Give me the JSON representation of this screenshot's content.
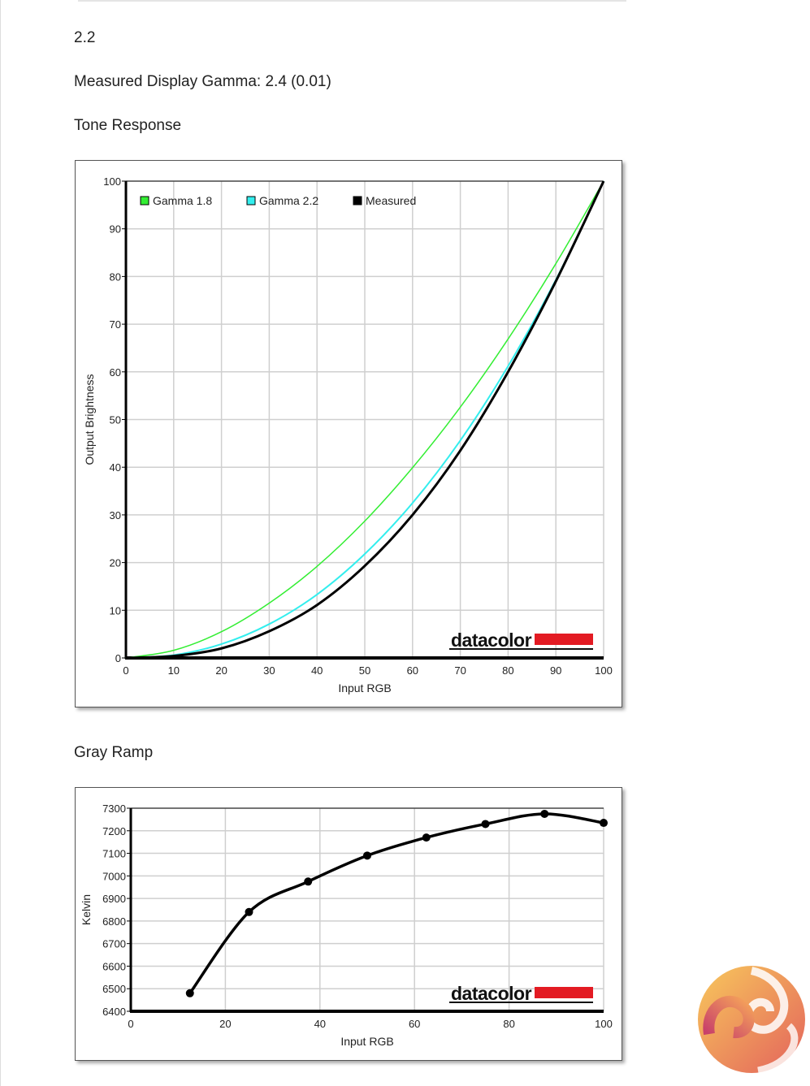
{
  "gamma_target": "2.2",
  "measured_gamma_label": "Measured Display Gamma: 2.4 (0.01)",
  "tone_title": "Tone Response",
  "gray_title": "Gray Ramp",
  "watermark": "datacolor",
  "colors": {
    "gamma18": "#33ee33",
    "gamma22": "#33eeee",
    "measured": "#000000",
    "brand_red": "#e31b23"
  },
  "chart_data": [
    {
      "type": "line",
      "title": "Tone Response",
      "xlabel": "Input RGB",
      "ylabel": "Output Brightness",
      "xlim": [
        0,
        100
      ],
      "ylim": [
        0,
        100
      ],
      "xticks": [
        "0",
        "10",
        "20",
        "30",
        "40",
        "50",
        "60",
        "70",
        "80",
        "90",
        "100"
      ],
      "yticks": [
        "0",
        "10",
        "20",
        "30",
        "40",
        "50",
        "60",
        "70",
        "80",
        "90",
        "100"
      ],
      "grid": true,
      "legend": "top-left",
      "x": [
        0,
        10,
        20,
        30,
        40,
        50,
        60,
        70,
        80,
        90,
        100
      ],
      "series": [
        {
          "name": "Gamma 1.8",
          "color": "#33ee33",
          "values": [
            0,
            1.6,
            5.5,
            11.5,
            19.2,
            28.7,
            39.9,
            52.6,
            66.9,
            82.7,
            100
          ]
        },
        {
          "name": "Gamma 2.2",
          "color": "#33eeee",
          "values": [
            0,
            0.6,
            2.9,
            7.1,
            13.3,
            21.8,
            32.5,
            45.6,
            61.2,
            79.3,
            100
          ]
        },
        {
          "name": "Measured",
          "color": "#000000",
          "values": [
            0,
            0.4,
            2.0,
            5.6,
            11.1,
            19.3,
            30.0,
            43.5,
            60.0,
            79.0,
            100
          ]
        }
      ]
    },
    {
      "type": "line",
      "title": "Gray Ramp",
      "xlabel": "Input RGB",
      "ylabel": "Kelvin",
      "xlim": [
        0,
        100
      ],
      "ylim": [
        6400,
        7300
      ],
      "xticks": [
        "0",
        "20",
        "40",
        "60",
        "80",
        "100"
      ],
      "yticks": [
        "6400",
        "6500",
        "6600",
        "6700",
        "6800",
        "6900",
        "7000",
        "7100",
        "7200",
        "7300"
      ],
      "grid": true,
      "x": [
        12.5,
        25,
        37.5,
        50,
        62.5,
        75,
        87.5,
        100
      ],
      "series": [
        {
          "name": "Kelvin",
          "color": "#000000",
          "values": [
            6480,
            6840,
            6975,
            7090,
            7170,
            7230,
            7275,
            7235
          ]
        }
      ]
    }
  ]
}
